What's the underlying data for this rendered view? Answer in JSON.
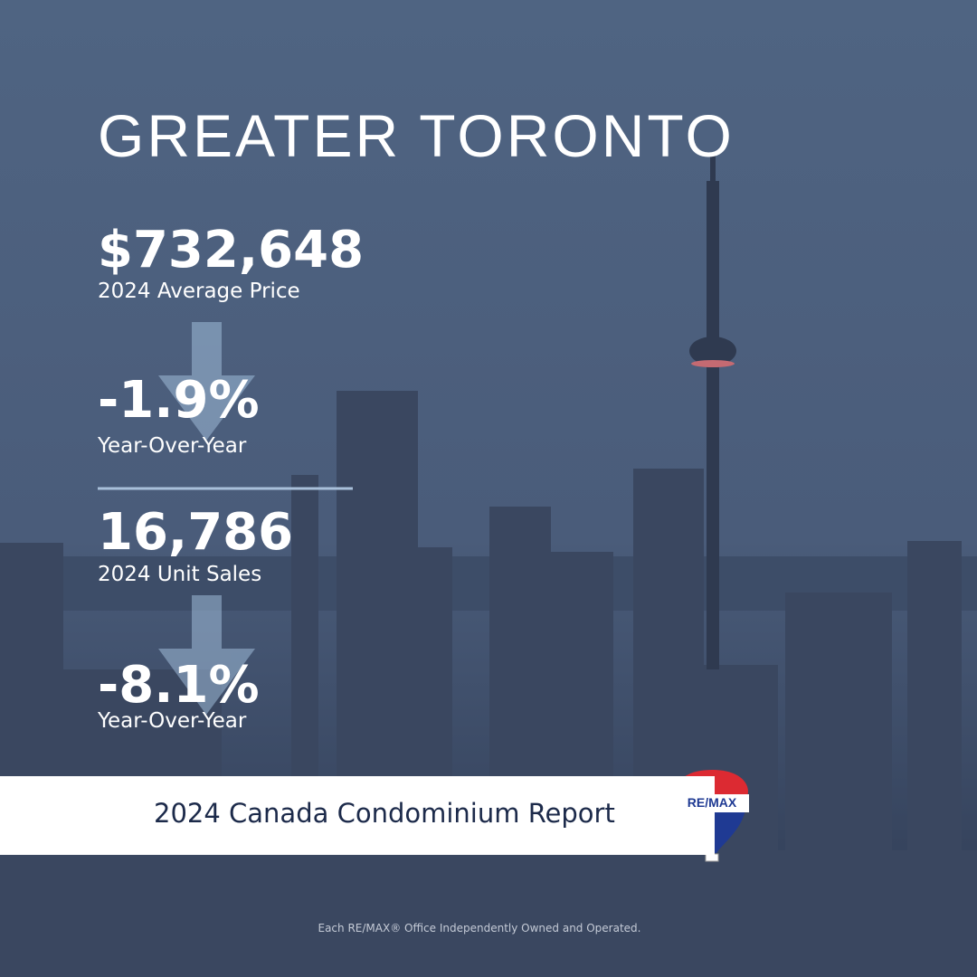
{
  "header": {
    "title": "GREATER TORONTO"
  },
  "stats": [
    {
      "value": "$732,648",
      "label": "2024 Average Price",
      "change": "-1.9%",
      "change_label": "Year-Over-Year"
    },
    {
      "value": "16,786",
      "label": "2024 Unit Sales",
      "change": "-8.1%",
      "change_label": "Year-Over-Year"
    }
  ],
  "banner": {
    "text": "2024 Canada Condominium Report"
  },
  "logo": {
    "text": "RE/MAX"
  },
  "footer": {
    "text": "Each RE/MAX® Office Independently Owned and Operated."
  }
}
